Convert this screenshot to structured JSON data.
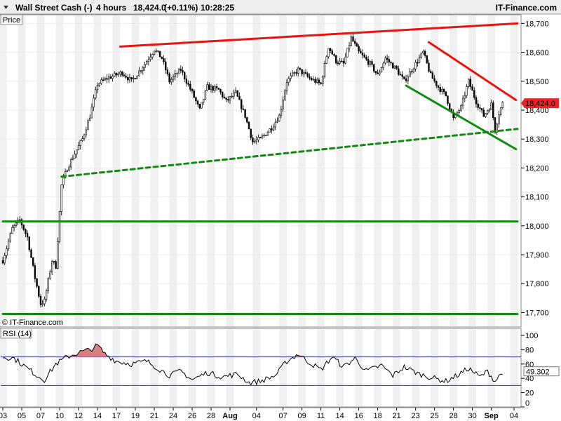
{
  "header": {
    "instrument": "Wall Street Cash (-)",
    "timeframe": "4 hours",
    "last_price": "18,424.0",
    "change": "(+0.11%)",
    "time": "10:28:25",
    "source": "IT-Finance.com"
  },
  "price_panel": {
    "label": "Price",
    "watermark": "© IT-Finance.com",
    "current_price_label": "18,424.0",
    "colors": {
      "resistance": "#ee1111",
      "support": "#138a13",
      "current_tag": "#ee2222"
    }
  },
  "rsi_panel": {
    "label": "RSI (14)",
    "current_value_label": "49.302",
    "colors": {
      "line": "#000000",
      "levels": "#3333aa",
      "overbought_fill": "#d88080"
    }
  },
  "chart_data": [
    {
      "type": "candlestick",
      "ylim": [
        17650,
        18730
      ],
      "y_ticks": [
        17700,
        17800,
        17900,
        18000,
        18100,
        18200,
        18300,
        18400,
        18500,
        18600,
        18700
      ],
      "y_tick_labels": [
        "17,700",
        "17,800",
        "17,900",
        "18,000",
        "18,100",
        "18,200",
        "18,300",
        "18,400",
        "18,500",
        "18,600",
        "18,700"
      ],
      "x_tick_labels": [
        "03",
        "05",
        "07",
        "10",
        "12",
        "14",
        "17",
        "19",
        "21",
        "24",
        "26",
        "28",
        "Aug",
        "04",
        "07",
        "09",
        "11",
        "14",
        "16",
        "18",
        "21",
        "23",
        "25",
        "28",
        "30",
        "Sep",
        "04"
      ],
      "x_tick_index": [
        0,
        10,
        20,
        30,
        40,
        50,
        60,
        70,
        80,
        90,
        100,
        110,
        120,
        134,
        148,
        158,
        168,
        178,
        188,
        198,
        208,
        218,
        228,
        238,
        248,
        258,
        270
      ],
      "bar_count": 264,
      "keypoints": [
        {
          "i": 0,
          "price": 17880
        },
        {
          "i": 5,
          "price": 17990
        },
        {
          "i": 9,
          "price": 18020
        },
        {
          "i": 13,
          "price": 17960
        },
        {
          "i": 17,
          "price": 17820
        },
        {
          "i": 20,
          "price": 17730
        },
        {
          "i": 22,
          "price": 17740
        },
        {
          "i": 26,
          "price": 17880
        },
        {
          "i": 28,
          "price": 17860
        },
        {
          "i": 31,
          "price": 18140
        },
        {
          "i": 34,
          "price": 18200
        },
        {
          "i": 38,
          "price": 18250
        },
        {
          "i": 42,
          "price": 18300
        },
        {
          "i": 46,
          "price": 18380
        },
        {
          "i": 50,
          "price": 18490
        },
        {
          "i": 55,
          "price": 18510
        },
        {
          "i": 63,
          "price": 18530
        },
        {
          "i": 68,
          "price": 18500
        },
        {
          "i": 75,
          "price": 18560
        },
        {
          "i": 80,
          "price": 18610
        },
        {
          "i": 84,
          "price": 18580
        },
        {
          "i": 88,
          "price": 18500
        },
        {
          "i": 94,
          "price": 18540
        },
        {
          "i": 100,
          "price": 18460
        },
        {
          "i": 104,
          "price": 18400
        },
        {
          "i": 108,
          "price": 18480
        },
        {
          "i": 114,
          "price": 18470
        },
        {
          "i": 118,
          "price": 18430
        },
        {
          "i": 123,
          "price": 18460
        },
        {
          "i": 128,
          "price": 18380
        },
        {
          "i": 132,
          "price": 18290
        },
        {
          "i": 136,
          "price": 18300
        },
        {
          "i": 142,
          "price": 18340
        },
        {
          "i": 146,
          "price": 18380
        },
        {
          "i": 150,
          "price": 18500
        },
        {
          "i": 156,
          "price": 18540
        },
        {
          "i": 162,
          "price": 18510
        },
        {
          "i": 168,
          "price": 18490
        },
        {
          "i": 172,
          "price": 18620
        },
        {
          "i": 176,
          "price": 18570
        },
        {
          "i": 180,
          "price": 18560
        },
        {
          "i": 184,
          "price": 18650
        },
        {
          "i": 188,
          "price": 18600
        },
        {
          "i": 194,
          "price": 18560
        },
        {
          "i": 198,
          "price": 18520
        },
        {
          "i": 202,
          "price": 18580
        },
        {
          "i": 208,
          "price": 18540
        },
        {
          "i": 212,
          "price": 18500
        },
        {
          "i": 218,
          "price": 18560
        },
        {
          "i": 222,
          "price": 18600
        },
        {
          "i": 226,
          "price": 18520
        },
        {
          "i": 230,
          "price": 18480
        },
        {
          "i": 234,
          "price": 18450
        },
        {
          "i": 238,
          "price": 18370
        },
        {
          "i": 242,
          "price": 18410
        },
        {
          "i": 246,
          "price": 18500
        },
        {
          "i": 250,
          "price": 18430
        },
        {
          "i": 254,
          "price": 18380
        },
        {
          "i": 258,
          "price": 18420
        },
        {
          "i": 260,
          "price": 18330
        },
        {
          "i": 262,
          "price": 18390
        },
        {
          "i": 264,
          "price": 18424
        }
      ],
      "trendlines": [
        {
          "kind": "resistance",
          "style": "solid",
          "from": {
            "i": 62,
            "price": 18620
          },
          "to": {
            "i": 272,
            "price": 18700
          }
        },
        {
          "kind": "resistance",
          "style": "solid",
          "from": {
            "i": 225,
            "price": 18635
          },
          "to": {
            "i": 271,
            "price": 18435
          }
        },
        {
          "kind": "support",
          "style": "solid",
          "from": {
            "i": 213,
            "price": 18485
          },
          "to": {
            "i": 271,
            "price": 18265
          }
        },
        {
          "kind": "support",
          "style": "dashed",
          "from": {
            "i": 31,
            "price": 18170
          },
          "to": {
            "i": 273,
            "price": 18335
          }
        },
        {
          "kind": "support",
          "style": "solid",
          "from": {
            "i": 0,
            "price": 18015
          },
          "to": {
            "i": 273,
            "price": 18015
          }
        },
        {
          "kind": "support",
          "style": "solid",
          "from": {
            "i": 0,
            "price": 17695
          },
          "to": {
            "i": 273,
            "price": 17695
          }
        }
      ]
    },
    {
      "type": "line",
      "name": "RSI (14)",
      "ylim": [
        0,
        100
      ],
      "y_ticks": [
        0,
        20,
        40,
        60,
        80,
        100
      ],
      "levels": [
        30,
        70
      ],
      "keypoints": [
        {
          "i": 0,
          "value": 70
        },
        {
          "i": 6,
          "value": 68
        },
        {
          "i": 12,
          "value": 56
        },
        {
          "i": 18,
          "value": 44
        },
        {
          "i": 22,
          "value": 38
        },
        {
          "i": 28,
          "value": 60
        },
        {
          "i": 34,
          "value": 70
        },
        {
          "i": 40,
          "value": 76
        },
        {
          "i": 46,
          "value": 80
        },
        {
          "i": 50,
          "value": 86
        },
        {
          "i": 54,
          "value": 74
        },
        {
          "i": 60,
          "value": 64
        },
        {
          "i": 68,
          "value": 60
        },
        {
          "i": 76,
          "value": 64
        },
        {
          "i": 82,
          "value": 54
        },
        {
          "i": 88,
          "value": 44
        },
        {
          "i": 94,
          "value": 50
        },
        {
          "i": 100,
          "value": 38
        },
        {
          "i": 108,
          "value": 48
        },
        {
          "i": 116,
          "value": 42
        },
        {
          "i": 124,
          "value": 46
        },
        {
          "i": 130,
          "value": 34
        },
        {
          "i": 136,
          "value": 36
        },
        {
          "i": 144,
          "value": 44
        },
        {
          "i": 150,
          "value": 64
        },
        {
          "i": 156,
          "value": 74
        },
        {
          "i": 162,
          "value": 62
        },
        {
          "i": 168,
          "value": 52
        },
        {
          "i": 174,
          "value": 70
        },
        {
          "i": 180,
          "value": 56
        },
        {
          "i": 186,
          "value": 68
        },
        {
          "i": 192,
          "value": 50
        },
        {
          "i": 200,
          "value": 58
        },
        {
          "i": 206,
          "value": 44
        },
        {
          "i": 212,
          "value": 56
        },
        {
          "i": 220,
          "value": 46
        },
        {
          "i": 228,
          "value": 40
        },
        {
          "i": 234,
          "value": 36
        },
        {
          "i": 240,
          "value": 44
        },
        {
          "i": 246,
          "value": 54
        },
        {
          "i": 252,
          "value": 42
        },
        {
          "i": 256,
          "value": 50
        },
        {
          "i": 260,
          "value": 36
        },
        {
          "i": 264,
          "value": 49.3
        }
      ]
    }
  ]
}
